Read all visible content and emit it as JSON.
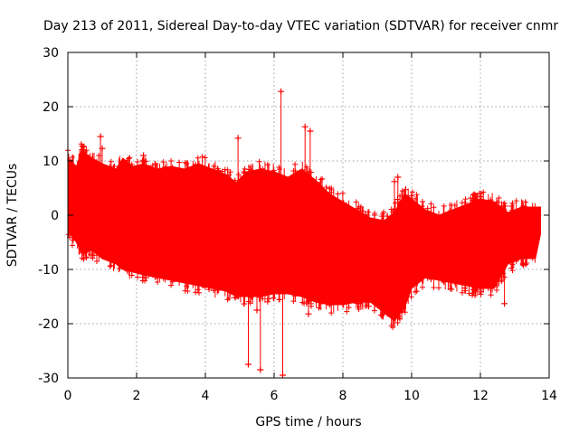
{
  "chart_data": {
    "type": "scatter",
    "title": "Day 213 of 2011, Sidereal Day-to-day VTEC variation (SDTVAR) for receiver cnmr",
    "xlabel": "GPS time / hours",
    "ylabel": "SDTVAR / TECUs",
    "xlim": [
      0,
      14
    ],
    "ylim": [
      -30,
      30
    ],
    "xticks": [
      "0",
      "2",
      "4",
      "6",
      "8",
      "10",
      "12",
      "14"
    ],
    "yticks": [
      "30",
      "20",
      "10",
      "0",
      "-10",
      "-20",
      "-30"
    ],
    "xtick_values": [
      0,
      2,
      4,
      6,
      8,
      10,
      12,
      14
    ],
    "ytick_values": [
      30,
      20,
      10,
      0,
      -10,
      -20,
      -30
    ],
    "grid": true,
    "marker": "+",
    "series_color": "#ff0000",
    "envelope": {
      "name": "SDTVAR",
      "x": [
        0.0,
        0.25,
        0.4,
        0.7,
        1.0,
        1.4,
        1.6,
        1.9,
        2.2,
        2.6,
        3.0,
        3.4,
        3.8,
        4.2,
        4.6,
        4.9,
        5.2,
        5.6,
        6.0,
        6.4,
        6.8,
        7.2,
        7.6,
        8.0,
        8.4,
        8.8,
        9.2,
        9.5,
        9.8,
        10.0,
        10.4,
        10.8,
        11.2,
        11.6,
        12.0,
        12.4,
        12.8,
        13.2,
        13.6,
        13.75
      ],
      "upper": [
        10.5,
        9.0,
        12.0,
        10.5,
        9.5,
        8.5,
        10.5,
        9.0,
        9.5,
        8.5,
        9.0,
        8.5,
        9.5,
        8.5,
        7.5,
        6.0,
        8.0,
        8.5,
        8.0,
        7.0,
        8.5,
        6.5,
        4.0,
        2.5,
        1.0,
        -0.5,
        -1.0,
        0.5,
        4.0,
        3.0,
        1.0,
        0.0,
        1.0,
        2.0,
        3.0,
        2.5,
        0.5,
        1.5,
        1.5,
        1.5
      ],
      "lower": [
        -3.0,
        -5.0,
        -7.0,
        -6.5,
        -8.0,
        -9.0,
        -10.0,
        -10.5,
        -11.0,
        -11.5,
        -12.0,
        -12.5,
        -13.0,
        -13.5,
        -14.0,
        -15.0,
        -15.0,
        -15.0,
        -14.5,
        -14.5,
        -15.0,
        -16.0,
        -16.5,
        -16.5,
        -16.0,
        -16.0,
        -18.0,
        -19.5,
        -17.0,
        -13.5,
        -11.5,
        -12.0,
        -12.5,
        -13.0,
        -13.5,
        -13.5,
        -9.0,
        -8.0,
        -8.0,
        -3.5
      ]
    },
    "spikes": [
      {
        "x": 0.95,
        "y": 14.5
      },
      {
        "x": 1.0,
        "y": 12.3
      },
      {
        "x": 2.2,
        "y": 11.0
      },
      {
        "x": 4.95,
        "y": 14.2
      },
      {
        "x": 6.2,
        "y": 22.8
      },
      {
        "x": 6.9,
        "y": 16.3
      },
      {
        "x": 7.05,
        "y": 15.5
      },
      {
        "x": 5.25,
        "y": -27.5
      },
      {
        "x": 5.6,
        "y": -28.5
      },
      {
        "x": 5.5,
        "y": -17.5
      },
      {
        "x": 6.25,
        "y": -29.5
      },
      {
        "x": 7.0,
        "y": -18.2
      },
      {
        "x": 8.75,
        "y": -16.8
      },
      {
        "x": 12.7,
        "y": -16.3
      },
      {
        "x": 9.5,
        "y": 6.2
      },
      {
        "x": 9.6,
        "y": 7.0
      }
    ]
  }
}
